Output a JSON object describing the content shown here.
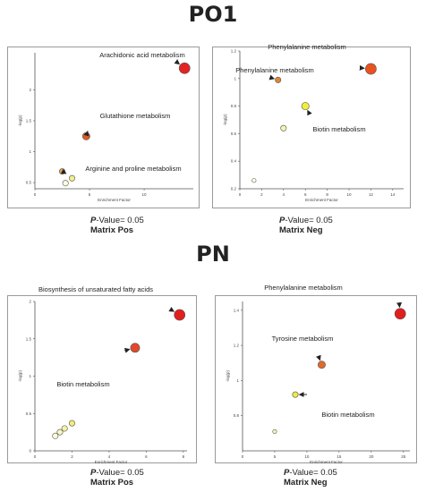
{
  "sections": [
    {
      "title": "PO1"
    },
    {
      "title": "PN"
    }
  ],
  "chart_data": [
    {
      "type": "scatter",
      "section": "PO1",
      "xlabel": "Enrichment Factor",
      "ylabel": "-log(p)",
      "xlim": [
        0,
        14.5
      ],
      "ylim": [
        0.4,
        2.6
      ],
      "xticks": [
        0,
        5,
        10
      ],
      "xtick_labels": [
        "0",
        "5",
        "10"
      ],
      "yticks": [
        0.5,
        1,
        1.5,
        2
      ],
      "ytick_labels": [
        "0.5",
        "1",
        "1.5",
        "2"
      ],
      "grid": false,
      "points": [
        {
          "x": 13.7,
          "y": 2.35,
          "size": 5,
          "color": "#e32222"
        },
        {
          "x": 4.7,
          "y": 1.25,
          "size": 3,
          "color": "#df5a2a"
        },
        {
          "x": 2.5,
          "y": 0.68,
          "size": 2,
          "color": "#e3a24a"
        },
        {
          "x": 3.4,
          "y": 0.57,
          "size": 2,
          "color": "#f2ef8a"
        },
        {
          "x": 2.8,
          "y": 0.49,
          "size": 2,
          "color": "#fbfbe0"
        }
      ],
      "annotations": [
        {
          "text": "Arachidonic acid metabolism",
          "point": 0
        },
        {
          "text": "Glutathione metabolism",
          "point": 1
        },
        {
          "text": "Arginine and proline metabolism",
          "point": 2
        }
      ],
      "caption": {
        "pvalue_label": "P",
        "pvalue_text": "-Value= 0.05",
        "matrix": "Matrix Pos"
      }
    },
    {
      "type": "scatter",
      "section": "PO1",
      "xlabel": "Enrichment Factor",
      "ylabel": "-log(p)",
      "xlim": [
        0,
        15
      ],
      "ylim": [
        0.2,
        1.2
      ],
      "xticks": [
        0,
        2,
        4,
        6,
        8,
        10,
        12,
        14
      ],
      "xtick_labels": [
        "0",
        "2",
        "4",
        "6",
        "8",
        "10",
        "12",
        "14"
      ],
      "yticks": [
        0.2,
        0.4,
        0.6,
        0.8,
        1,
        1.2
      ],
      "ytick_labels": [
        "0.2",
        "0.4",
        "0.6",
        "0.8",
        "1",
        "1.2"
      ],
      "grid": false,
      "points": [
        {
          "x": 12,
          "y": 1.07,
          "size": 5,
          "color": "#e8521f"
        },
        {
          "x": 3.5,
          "y": 0.99,
          "size": 2,
          "color": "#e0862e"
        },
        {
          "x": 6,
          "y": 0.8,
          "size": 3,
          "color": "#f0ee3a"
        },
        {
          "x": 4,
          "y": 0.64,
          "size": 2,
          "color": "#f6f4b0"
        },
        {
          "x": 1.3,
          "y": 0.26,
          "size": 1,
          "color": "#fbfbe8"
        }
      ],
      "annotations": [
        {
          "text": "Phenylalanine metabolism",
          "point": 0
        },
        {
          "text": "Phenylalanine metabolism",
          "point": 1
        },
        {
          "text": "Biotin metabolism",
          "point": 2
        }
      ],
      "caption": {
        "pvalue_label": "P",
        "pvalue_text": "-Value= 0.05",
        "matrix": "Matrix Neg"
      }
    },
    {
      "type": "scatter",
      "section": "PN",
      "xlabel": "Enrichment Factor",
      "ylabel": "-log(p)",
      "xlim": [
        0,
        8.2
      ],
      "ylim": [
        0,
        2
      ],
      "xticks": [
        0,
        2,
        4,
        6,
        8
      ],
      "xtick_labels": [
        "0",
        "2",
        "4",
        "6",
        "8"
      ],
      "yticks": [
        0,
        0.5,
        1,
        1.5,
        2
      ],
      "ytick_labels": [
        "0",
        "0.5",
        "1",
        "1.5",
        "2"
      ],
      "grid": false,
      "points": [
        {
          "x": 7.8,
          "y": 1.82,
          "size": 5,
          "color": "#e31e1e"
        },
        {
          "x": 5.4,
          "y": 1.38,
          "size": 4,
          "color": "#e2492a"
        },
        {
          "x": 2,
          "y": 0.37,
          "size": 2,
          "color": "#f2ec7a"
        },
        {
          "x": 1.6,
          "y": 0.3,
          "size": 2,
          "color": "#f5f2a0"
        },
        {
          "x": 1.35,
          "y": 0.25,
          "size": 2,
          "color": "#f8f6c0"
        },
        {
          "x": 1.1,
          "y": 0.2,
          "size": 2,
          "color": "#fbfbdc"
        }
      ],
      "annotations": [
        {
          "text": "Biosynthesis of unsaturated fatty acids",
          "point": 0
        },
        {
          "text": "Biotin metabolism",
          "point": 1
        }
      ],
      "caption": {
        "pvalue_label": "P",
        "pvalue_text": "-Value= 0.05",
        "matrix": "Matrix Pos"
      }
    },
    {
      "type": "scatter",
      "section": "PN",
      "xlabel": "Enrichment Factor",
      "ylabel": "-log(p)",
      "xlim": [
        0,
        26
      ],
      "ylim": [
        0.6,
        1.45
      ],
      "xticks": [
        0,
        5,
        10,
        15,
        20,
        25
      ],
      "xtick_labels": [
        "0",
        "5",
        "10",
        "15",
        "20",
        "25"
      ],
      "yticks": [
        0.8,
        1,
        1.2,
        1.4
      ],
      "ytick_labels": [
        "0.8",
        "1",
        "1.2",
        "1.4"
      ],
      "grid": false,
      "points": [
        {
          "x": 24.5,
          "y": 1.38,
          "size": 5,
          "color": "#e31e1e"
        },
        {
          "x": 12.3,
          "y": 1.09,
          "size": 3,
          "color": "#e06a2a"
        },
        {
          "x": 8.2,
          "y": 0.92,
          "size": 2,
          "color": "#f0ea40"
        },
        {
          "x": 5,
          "y": 0.71,
          "size": 1,
          "color": "#f6f4b8"
        }
      ],
      "annotations": [
        {
          "text": "Phenylalanine metabolism",
          "point": 0
        },
        {
          "text": "Tyrosine metabolism",
          "point": 1
        },
        {
          "text": "Biotin metabolism",
          "point": 2
        }
      ],
      "caption": {
        "pvalue_label": "P",
        "pvalue_text": "-Value= 0.05",
        "matrix": "Matrix Neg"
      }
    }
  ]
}
